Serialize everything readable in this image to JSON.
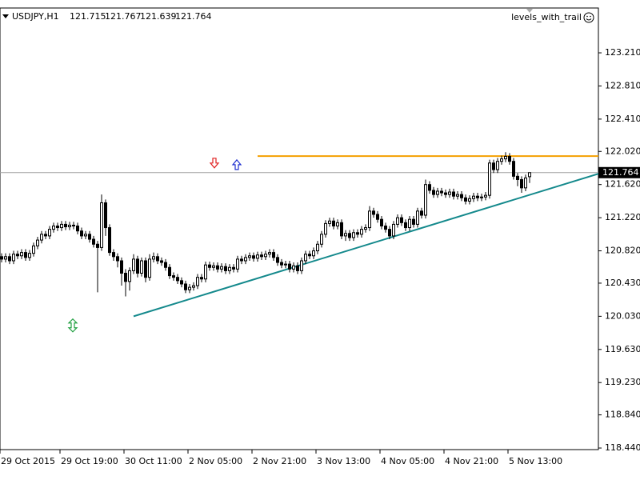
{
  "chart_data": {
    "type": "candlestick",
    "symbol": "USDJPY,H1",
    "indicator": "levels_with_trail",
    "categories": [
      "29 Oct 2015",
      null,
      null,
      null,
      null,
      null,
      null,
      null,
      null,
      null,
      null,
      null,
      null,
      null,
      null,
      "29 Oct 19:00",
      null,
      null,
      null,
      null,
      null,
      null,
      null,
      null,
      null,
      null,
      null,
      null,
      null,
      null,
      null,
      "30 Oct 11:00",
      null,
      null,
      null,
      null,
      null,
      null,
      null,
      null,
      null,
      null,
      null,
      null,
      null,
      null,
      null,
      "2 Nov 05:00",
      null,
      null,
      null,
      null,
      null,
      null,
      null,
      null,
      null,
      null,
      null,
      null,
      null,
      null,
      null,
      "2 Nov 21:00",
      null,
      null,
      null,
      null,
      null,
      null,
      null,
      null,
      null,
      null,
      null,
      null,
      null,
      null,
      null,
      "3 Nov 13:00",
      null,
      null,
      null,
      null,
      null,
      null,
      null,
      null,
      null,
      null,
      null,
      null,
      null,
      null,
      null,
      "4 Nov 05:00",
      null,
      null,
      null,
      null,
      null,
      null,
      null,
      null,
      null,
      null,
      null,
      null,
      null,
      null,
      null,
      "4 Nov 21:00",
      null,
      null,
      null,
      null,
      null,
      null,
      null,
      null,
      null,
      null,
      null,
      null,
      null,
      null,
      null,
      "5 Nov 13:00",
      null,
      null,
      null,
      null,
      null
    ],
    "open": [
      120.75,
      120.72,
      120.75,
      120.7,
      120.78,
      120.76,
      120.8,
      120.74,
      120.79,
      120.88,
      120.95,
      121.02,
      121.0,
      121.08,
      121.12,
      121.1,
      121.14,
      121.11,
      121.13,
      121.12,
      121.06,
      121.0,
      121.02,
      120.96,
      120.9,
      120.86,
      121.4,
      121.1,
      120.8,
      120.75,
      120.7,
      120.55,
      120.45,
      120.58,
      120.72,
      120.55,
      120.7,
      120.5,
      120.72,
      120.75,
      120.7,
      120.68,
      120.62,
      120.52,
      120.5,
      120.46,
      120.42,
      120.35,
      120.38,
      120.4,
      120.5,
      120.48,
      120.65,
      120.62,
      120.64,
      120.6,
      120.63,
      120.58,
      120.62,
      120.6,
      120.72,
      120.7,
      120.74,
      120.76,
      120.73,
      120.77,
      120.75,
      120.78,
      120.8,
      120.74,
      120.68,
      120.65,
      120.66,
      120.6,
      120.64,
      120.58,
      120.7,
      120.78,
      120.76,
      120.82,
      120.9,
      121.02,
      121.15,
      121.18,
      121.12,
      121.16,
      121.0,
      121.03,
      120.98,
      121.04,
      121.02,
      121.08,
      121.1,
      121.3,
      121.26,
      121.2,
      121.12,
      121.08,
      121.0,
      121.14,
      121.22,
      121.16,
      121.1,
      121.2,
      121.14,
      121.3,
      121.25,
      121.62,
      121.55,
      121.5,
      121.54,
      121.52,
      121.5,
      121.53,
      121.48,
      121.5,
      121.46,
      121.42,
      121.45,
      121.48,
      121.46,
      121.47,
      121.49,
      121.88,
      121.8,
      121.9,
      121.93,
      121.96,
      121.9,
      121.72,
      121.68,
      121.58,
      121.715
    ],
    "high": [
      120.79,
      120.79,
      120.79,
      120.82,
      120.82,
      120.84,
      120.84,
      120.83,
      120.92,
      120.99,
      121.06,
      121.06,
      121.12,
      121.16,
      121.16,
      121.18,
      121.18,
      121.17,
      121.17,
      121.16,
      121.1,
      121.06,
      121.06,
      121.0,
      120.94,
      121.5,
      121.44,
      121.14,
      120.84,
      120.79,
      120.74,
      120.6,
      120.62,
      120.78,
      120.76,
      120.74,
      120.74,
      120.78,
      120.8,
      120.79,
      120.74,
      120.72,
      120.66,
      120.56,
      120.54,
      120.5,
      120.46,
      120.42,
      120.44,
      120.54,
      120.54,
      120.69,
      120.69,
      120.68,
      120.68,
      120.67,
      120.67,
      120.66,
      120.66,
      120.76,
      120.76,
      120.78,
      120.8,
      120.8,
      120.81,
      120.81,
      120.82,
      120.84,
      120.84,
      120.78,
      120.72,
      120.7,
      120.7,
      120.68,
      120.68,
      120.74,
      120.82,
      120.82,
      120.86,
      120.94,
      121.06,
      121.19,
      121.22,
      121.22,
      121.2,
      121.2,
      121.07,
      121.07,
      121.08,
      121.08,
      121.12,
      121.14,
      121.36,
      121.34,
      121.3,
      121.24,
      121.16,
      121.12,
      121.18,
      121.26,
      121.26,
      121.2,
      121.24,
      121.24,
      121.34,
      121.34,
      121.68,
      121.66,
      121.59,
      121.58,
      121.58,
      121.56,
      121.57,
      121.57,
      121.54,
      121.54,
      121.5,
      121.49,
      121.52,
      121.52,
      121.51,
      121.53,
      121.92,
      121.92,
      121.94,
      121.97,
      122.01,
      122.0,
      121.94,
      121.76,
      121.72,
      121.74,
      121.767
    ],
    "low": [
      120.68,
      120.68,
      120.66,
      120.66,
      120.72,
      120.72,
      120.7,
      120.7,
      120.75,
      120.84,
      120.91,
      120.96,
      120.96,
      121.04,
      121.06,
      121.06,
      121.07,
      121.07,
      121.08,
      121.02,
      120.96,
      120.96,
      120.92,
      120.86,
      120.32,
      120.82,
      121.0,
      120.76,
      120.7,
      120.62,
      120.4,
      120.27,
      120.34,
      120.54,
      120.5,
      120.51,
      120.44,
      120.46,
      120.68,
      120.66,
      120.64,
      120.58,
      120.48,
      120.46,
      120.42,
      120.38,
      120.31,
      120.31,
      120.34,
      120.36,
      120.44,
      120.44,
      120.58,
      120.58,
      120.56,
      120.56,
      120.54,
      120.54,
      120.56,
      120.56,
      120.66,
      120.66,
      120.7,
      120.69,
      120.69,
      120.71,
      120.71,
      120.74,
      120.7,
      120.64,
      120.61,
      120.61,
      120.56,
      120.56,
      120.54,
      120.54,
      120.66,
      120.72,
      120.72,
      120.78,
      120.86,
      120.98,
      121.11,
      121.08,
      121.08,
      120.96,
      120.94,
      120.94,
      120.94,
      120.98,
      120.98,
      121.04,
      121.06,
      121.22,
      121.16,
      121.08,
      121.04,
      120.96,
      120.96,
      121.1,
      121.12,
      121.06,
      121.06,
      121.1,
      121.1,
      121.21,
      121.21,
      121.51,
      121.46,
      121.46,
      121.48,
      121.46,
      121.46,
      121.44,
      121.44,
      121.42,
      121.38,
      121.38,
      121.41,
      121.42,
      121.42,
      121.43,
      121.45,
      121.76,
      121.76,
      121.86,
      121.89,
      121.86,
      121.68,
      121.6,
      121.52,
      121.54,
      121.639
    ],
    "close": [
      120.72,
      120.75,
      120.7,
      120.78,
      120.76,
      120.8,
      120.74,
      120.79,
      120.88,
      120.95,
      121.02,
      121.0,
      121.08,
      121.12,
      121.1,
      121.14,
      121.11,
      121.13,
      121.12,
      121.06,
      121.0,
      121.02,
      120.96,
      120.9,
      120.86,
      121.4,
      121.1,
      120.8,
      120.75,
      120.7,
      120.55,
      120.45,
      120.58,
      120.72,
      120.55,
      120.7,
      120.5,
      120.72,
      120.75,
      120.7,
      120.68,
      120.62,
      120.52,
      120.5,
      120.46,
      120.42,
      120.35,
      120.38,
      120.4,
      120.5,
      120.48,
      120.65,
      120.62,
      120.64,
      120.6,
      120.63,
      120.58,
      120.62,
      120.6,
      120.72,
      120.7,
      120.74,
      120.76,
      120.73,
      120.77,
      120.75,
      120.78,
      120.8,
      120.74,
      120.68,
      120.65,
      120.66,
      120.6,
      120.64,
      120.58,
      120.7,
      120.78,
      120.76,
      120.82,
      120.9,
      121.02,
      121.15,
      121.18,
      121.12,
      121.16,
      121.0,
      121.03,
      120.98,
      121.04,
      121.02,
      121.08,
      121.1,
      121.3,
      121.26,
      121.2,
      121.12,
      121.08,
      121.0,
      121.14,
      121.22,
      121.16,
      121.1,
      121.2,
      121.14,
      121.3,
      121.25,
      121.62,
      121.55,
      121.5,
      121.54,
      121.52,
      121.5,
      121.53,
      121.48,
      121.5,
      121.46,
      121.42,
      121.45,
      121.48,
      121.46,
      121.47,
      121.49,
      121.88,
      121.8,
      121.9,
      121.93,
      121.96,
      121.9,
      121.72,
      121.68,
      121.58,
      121.7,
      121.764
    ],
    "ylim": [
      118.421,
      123.751
    ],
    "yticks": [
      {
        "value": 123.21,
        "label": "123.210"
      },
      {
        "value": 122.81,
        "label": "122.810"
      },
      {
        "value": 122.41,
        "label": "122.410"
      },
      {
        "value": 122.02,
        "label": "122.020"
      },
      {
        "value": 121.62,
        "label": "121.620"
      },
      {
        "value": 121.22,
        "label": "121.220"
      },
      {
        "value": 120.82,
        "label": "120.820"
      },
      {
        "value": 120.43,
        "label": "120.430"
      },
      {
        "value": 120.03,
        "label": "120.030"
      },
      {
        "value": 119.63,
        "label": "119.630"
      },
      {
        "value": 119.23,
        "label": "119.230"
      },
      {
        "value": 118.84,
        "label": "118.840"
      },
      {
        "value": 118.44,
        "label": "118.440"
      }
    ],
    "level": {
      "value": 121.964,
      "color": "#f5a000"
    },
    "trendline": {
      "x": [
        33,
        149.2
      ],
      "y": [
        120.03,
        121.75
      ],
      "color": "#14898c"
    },
    "signals": [
      {
        "x": 53.2,
        "y": 121.87,
        "kind": "down",
        "color": "#e02020"
      },
      {
        "x": 58.8,
        "y": 121.86,
        "kind": "up",
        "color": "#2030d0"
      },
      {
        "x": 17.8,
        "y": 119.92,
        "kind": "both",
        "color": "#20a040"
      }
    ]
  }
}
